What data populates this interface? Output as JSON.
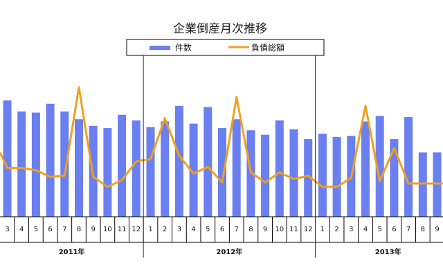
{
  "chart_data": {
    "type": "bar",
    "title": "企業倒産月次推移",
    "legend": [
      {
        "label": "件数",
        "kind": "bar",
        "color": "#6a7ff0"
      },
      {
        "label": "負債総額",
        "kind": "line",
        "color": "#f0a020"
      }
    ],
    "year_labels": [
      {
        "label": "2011年"
      },
      {
        "label": "2012年"
      },
      {
        "label": "2013年"
      }
    ],
    "categories": [
      "3",
      "4",
      "5",
      "6",
      "7",
      "8",
      "9",
      "10",
      "11",
      "12",
      "1",
      "2",
      "3",
      "4",
      "5",
      "6",
      "7",
      "8",
      "9",
      "10",
      "11",
      "12",
      "1",
      "2",
      "3",
      "4",
      "5",
      "6",
      "7",
      "8",
      "9"
    ],
    "series": [
      {
        "name": "件数",
        "kind": "bar",
        "values": [
          105,
          95,
          94,
          102,
          95,
          88,
          82,
          80,
          92,
          87,
          81,
          86,
          100,
          84,
          99,
          80,
          88,
          78,
          74,
          87,
          79,
          70,
          75,
          72,
          73,
          86,
          91,
          70,
          90,
          58,
          58
        ]
      },
      {
        "name": "負債総額",
        "kind": "line",
        "values": [
          44,
          44,
          42,
          36,
          37,
          117,
          36,
          27,
          33,
          50,
          52,
          89,
          55,
          39,
          45,
          31,
          108,
          40,
          31,
          40,
          34,
          37,
          27,
          27,
          35,
          100,
          32,
          62,
          30,
          30,
          30
        ]
      }
    ],
    "ylim": [
      0,
      130
    ],
    "grid": false,
    "legend_position": "top-center"
  }
}
